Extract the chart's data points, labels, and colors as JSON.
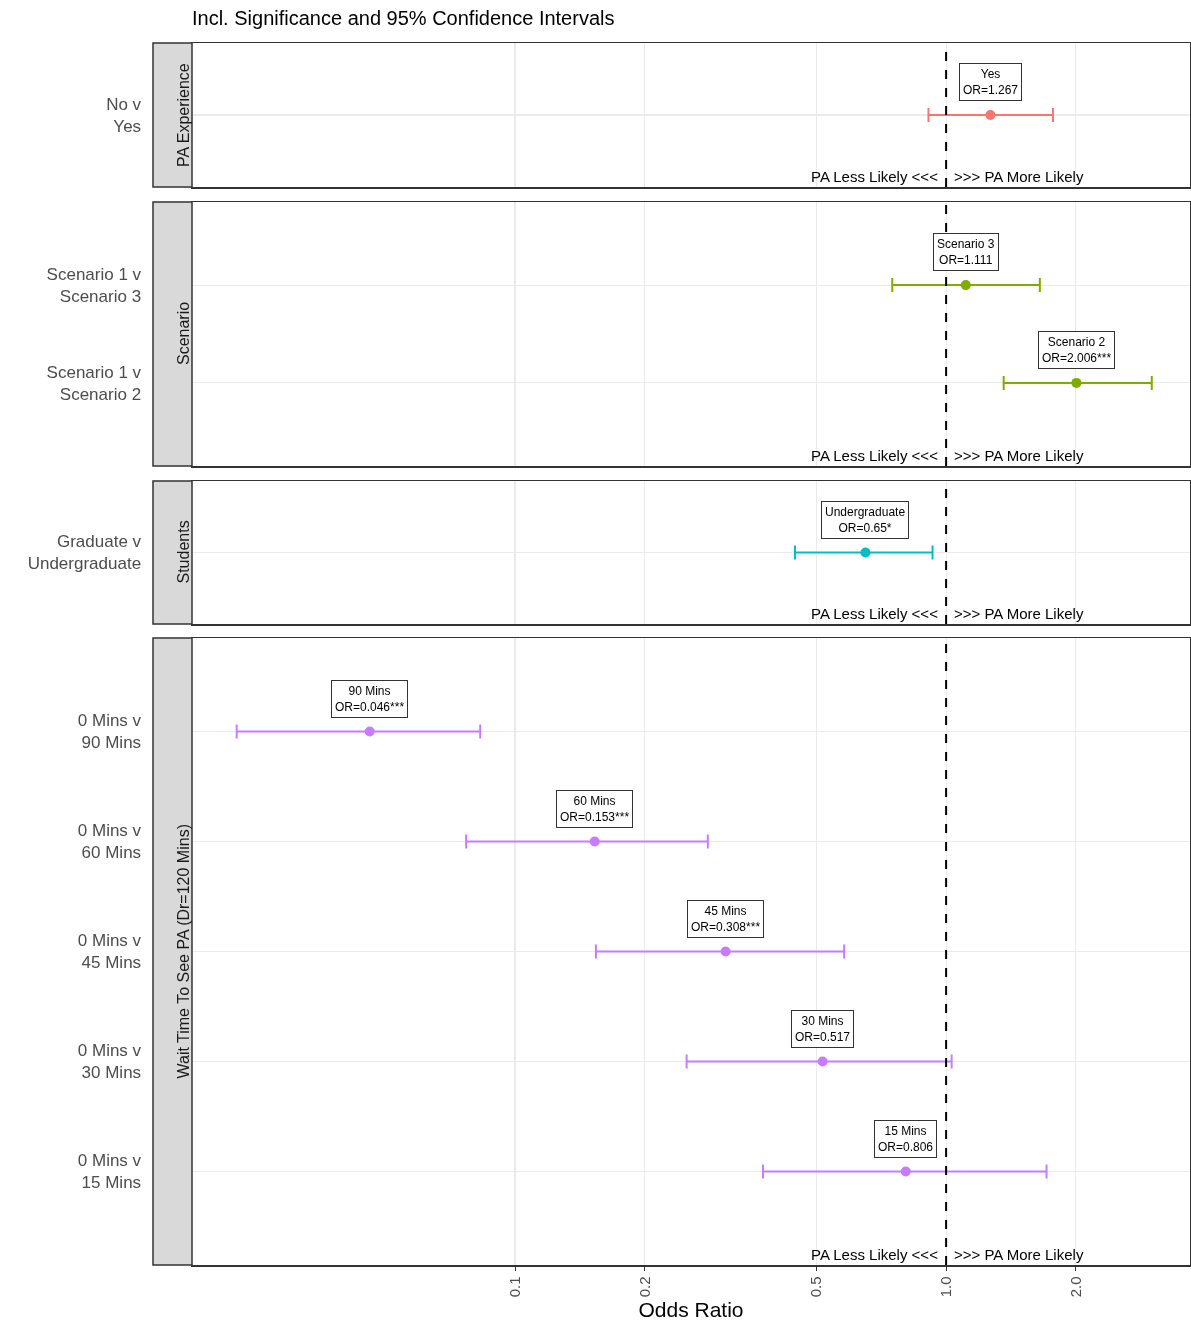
{
  "chart_data": [
    {
      "type": "scatter",
      "orientation": "horizontal",
      "title": "Incl. Significance and 95% Confidence Intervals",
      "ylabel": "PA Experience",
      "categories": [
        "No v\nYes"
      ],
      "values": [
        1.267
      ],
      "errors": [
        [
          0.91,
          1.77
        ]
      ],
      "color": "#f8766d",
      "marker": "circle",
      "log": "x",
      "xlim": [
        0.0178,
        3.68
      ],
      "xticks": [
        0.1,
        0.2,
        0.5,
        1,
        2
      ],
      "grid": true,
      "tick_labels": "y",
      "ref_lines": [
        {
          "axis": "x",
          "value": 1,
          "line_style": "dashed",
          "color": "#000000"
        }
      ],
      "annotations": [
        {
          "text": "Yes\nOR=1.267",
          "x": 1.267,
          "y": "No v\nYes"
        },
        {
          "text": "PA Less Likely <<<",
          "x": 1
        },
        {
          "text": ">>> PA More Likely",
          "x": 1
        }
      ]
    },
    {
      "type": "scatter",
      "orientation": "horizontal",
      "ylabel": "Scenario",
      "categories": [
        "Scenario 1 v\nScenario 3",
        "Scenario 1 v\nScenario 2"
      ],
      "values": [
        1.111,
        2.006
      ],
      "errors": [
        [
          0.75,
          1.65
        ],
        [
          1.36,
          3.0
        ]
      ],
      "color": "#7cae00",
      "marker": "circle",
      "log": "x",
      "xlim": [
        0.0178,
        3.68
      ],
      "xticks": [
        0.1,
        0.2,
        0.5,
        1,
        2
      ],
      "grid": true,
      "tick_labels": "y",
      "ref_lines": [
        {
          "axis": "x",
          "value": 1,
          "line_style": "dashed",
          "color": "#000000"
        }
      ],
      "annotations": [
        {
          "text": "Scenario 3\nOR=1.111",
          "x": 1.111,
          "y": "Scenario 1 v\nScenario 3"
        },
        {
          "text": "Scenario 2\nOR=2.006***",
          "x": 2.006,
          "y": "Scenario 1 v\nScenario 2"
        },
        {
          "text": "PA Less Likely <<<",
          "x": 1
        },
        {
          "text": ">>> PA More Likely",
          "x": 1
        }
      ]
    },
    {
      "type": "scatter",
      "orientation": "horizontal",
      "ylabel": "Students",
      "categories": [
        "Graduate v\nUndergraduate"
      ],
      "values": [
        0.65
      ],
      "errors": [
        [
          0.446,
          0.93
        ]
      ],
      "color": "#00bfc4",
      "marker": "circle",
      "log": "x",
      "xlim": [
        0.0178,
        3.68
      ],
      "xticks": [
        0.1,
        0.2,
        0.5,
        1,
        2
      ],
      "grid": true,
      "tick_labels": "y",
      "ref_lines": [
        {
          "axis": "x",
          "value": 1,
          "line_style": "dashed",
          "color": "#000000"
        }
      ],
      "annotations": [
        {
          "text": "Undergraduate\nOR=0.65*",
          "x": 0.65,
          "y": "Graduate v\nUndergraduate"
        },
        {
          "text": "PA Less Likely <<<",
          "x": 1
        },
        {
          "text": ">>> PA More Likely",
          "x": 1
        }
      ]
    },
    {
      "type": "scatter",
      "orientation": "horizontal",
      "ylabel": "Wait Time To See PA (Dr=120 Mins)",
      "xlabel": "Odds Ratio",
      "categories": [
        "0 Mins v\n90 Mins",
        "0 Mins v\n60 Mins",
        "0 Mins v\n45 Mins",
        "0 Mins v\n30 Mins",
        "0 Mins v\n15 Mins"
      ],
      "values": [
        0.046,
        0.153,
        0.308,
        0.517,
        0.806
      ],
      "errors": [
        [
          0.0226,
          0.083
        ],
        [
          0.077,
          0.28
        ],
        [
          0.154,
          0.58
        ],
        [
          0.25,
          1.03
        ],
        [
          0.376,
          1.71
        ]
      ],
      "color": "#c77cff",
      "marker": "circle",
      "log": "x",
      "xlim": [
        0.0178,
        3.68
      ],
      "xticks": [
        0.1,
        0.2,
        0.5,
        {
          "value": 1,
          "label": "1.0"
        },
        {
          "value": 2,
          "label": "2.0"
        }
      ],
      "grid": true,
      "ref_lines": [
        {
          "axis": "x",
          "value": 1,
          "line_style": "dashed",
          "color": "#000000"
        }
      ],
      "annotations": [
        {
          "text": "90 Mins\nOR=0.046***",
          "x": 0.046,
          "y": "0 Mins v\n90 Mins"
        },
        {
          "text": "60 Mins\nOR=0.153***",
          "x": 0.153,
          "y": "0 Mins v\n60 Mins"
        },
        {
          "text": "45 Mins\nOR=0.308***",
          "x": 0.308,
          "y": "0 Mins v\n45 Mins"
        },
        {
          "text": "30 Mins\nOR=0.517",
          "x": 0.517,
          "y": "0 Mins v\n30 Mins"
        },
        {
          "text": "15 Mins\nOR=0.806",
          "x": 0.806,
          "y": "0 Mins v\n15 Mins"
        },
        {
          "text": "PA Less Likely <<<",
          "x": 1
        },
        {
          "text": ">>> PA More Likely",
          "x": 1
        }
      ]
    }
  ]
}
